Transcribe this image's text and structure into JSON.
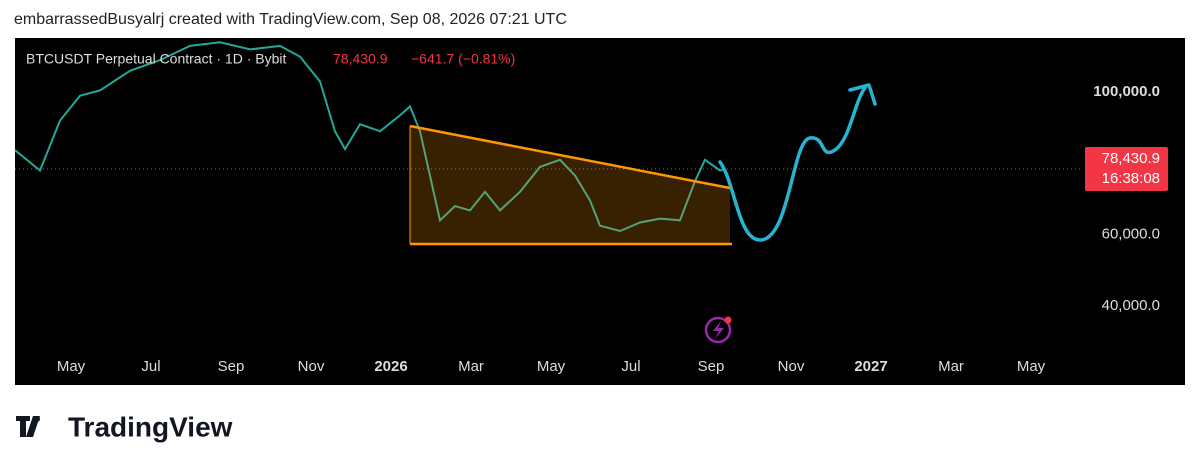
{
  "header": {
    "credit": "embarrassedBusyalrj created with TradingView.com, Sep 08, 2026 07:21 UTC"
  },
  "chart_data": {
    "type": "line",
    "title": "BTCUSDT Perpetual Contract · 1D · Bybit",
    "change": "−641.7 (−0.81%)",
    "countdown": "16:38:08",
    "last_price": {
      "value": 78430.9,
      "label": "78,430.9"
    },
    "x": [
      2.6,
      3.225,
      3.725,
      4.225,
      4.725,
      5.475,
      6.225,
      6.975,
      7.725,
      8.475,
      9.225,
      9.725,
      10.225,
      10.6,
      10.85,
      11.225,
      11.725,
      12.225,
      12.475,
      12.725,
      12.975,
      13.225,
      13.6,
      13.975,
      14.35,
      14.725,
      15.225,
      15.725,
      16.225,
      16.6,
      16.975,
      17.225,
      17.725,
      18.225,
      18.725,
      19.225,
      19.6,
      19.85,
      20.225,
      20.35
    ],
    "series": [
      {
        "color": "#26a69a",
        "values": [
          83700,
          78000,
          92000,
          99000,
          100500,
          106000,
          109000,
          113000,
          114000,
          112000,
          113000,
          110000,
          103000,
          89000,
          84000,
          91000,
          89000,
          93500,
          96000,
          89000,
          76500,
          64000,
          68000,
          66800,
          72000,
          66800,
          72000,
          79000,
          81000,
          76600,
          69600,
          62500,
          61000,
          63400,
          64500,
          64000,
          75000,
          81000,
          78000,
          78430.9
        ]
      }
    ],
    "xlim": [
      2.6,
      29.1
    ],
    "xticks": [
      {
        "value": 4,
        "label": "May"
      },
      {
        "value": 6,
        "label": "Jul"
      },
      {
        "value": 8,
        "label": "Sep"
      },
      {
        "value": 10,
        "label": "Nov"
      },
      {
        "value": 12,
        "label": "2026"
      },
      {
        "value": 14,
        "label": "Mar"
      },
      {
        "value": 16,
        "label": "May"
      },
      {
        "value": 18,
        "label": "Jul"
      },
      {
        "value": 20,
        "label": "Sep"
      },
      {
        "value": 22,
        "label": "Nov"
      },
      {
        "value": 24,
        "label": "2027"
      },
      {
        "value": 26,
        "label": "Mar"
      },
      {
        "value": 28,
        "label": "May"
      }
    ],
    "ylim": [
      17750,
      114650
    ],
    "yticks": [
      {
        "value": 40000,
        "label": "40,000.0"
      },
      {
        "value": 60000,
        "label": "60,000.0"
      },
      {
        "value": 100000,
        "label": "100,000.0"
      }
    ]
  },
  "footer": {
    "logo": "TradingView"
  }
}
